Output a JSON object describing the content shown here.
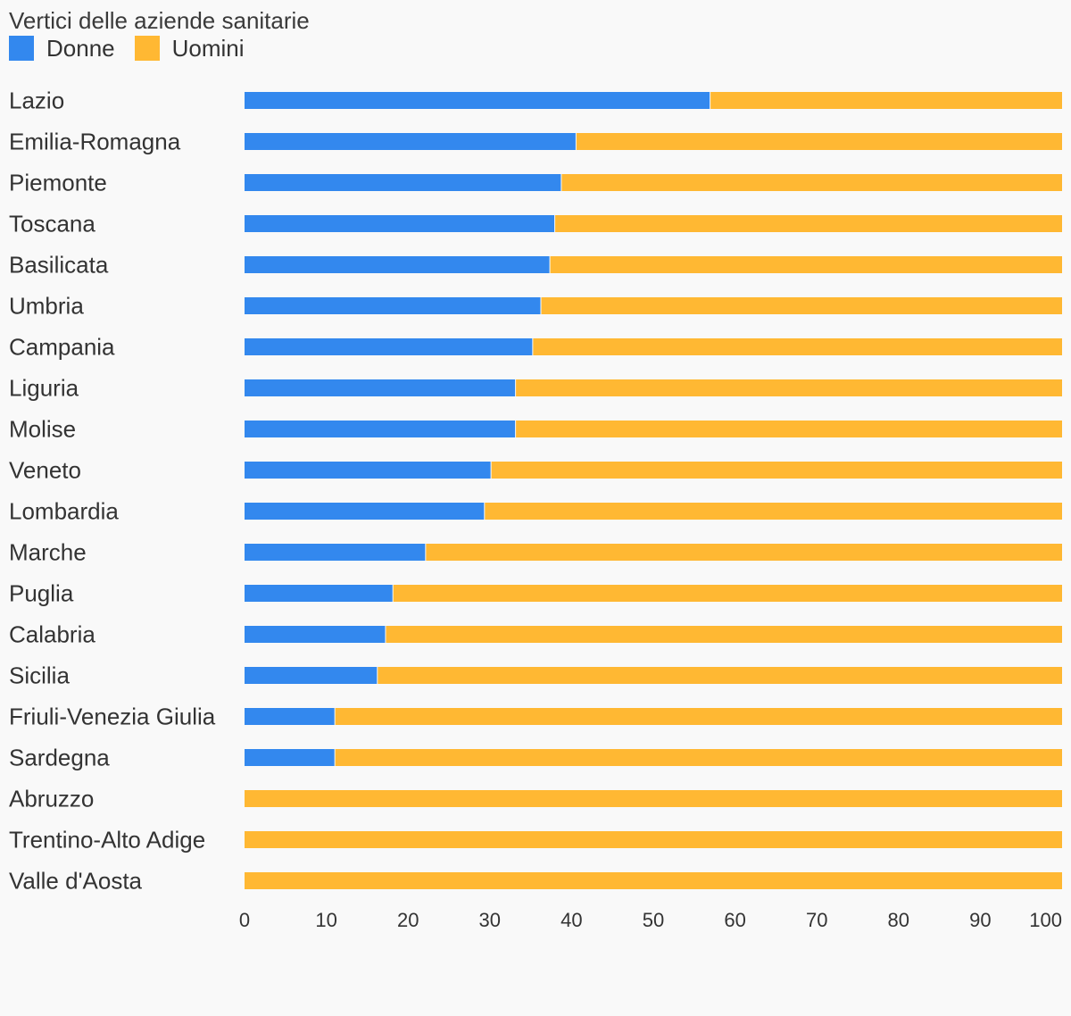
{
  "colors": {
    "background": "#f9f9f9",
    "donne": "#3388ee",
    "uomini": "#ffb833"
  },
  "chart_data": {
    "type": "bar",
    "orientation": "horizontal",
    "stacked": true,
    "title": "Vertici delle aziende sanitarie",
    "legend_position": "top-left",
    "categories": [
      "Lazio",
      "Emilia-Romagna",
      "Piemonte",
      "Toscana",
      "Basilicata",
      "Umbria",
      "Campania",
      "Liguria",
      "Molise",
      "Veneto",
      "Lombardia",
      "Marche",
      "Puglia",
      "Calabria",
      "Sicilia",
      "Friuli-Venezia Giulia",
      "Sardegna",
      "Abruzzo",
      "Trentino-Alto Adige",
      "Valle d'Aosta"
    ],
    "series": [
      {
        "name": "Donne",
        "color": "#3388ee",
        "values": [
          57,
          40.6,
          38.8,
          38,
          37.4,
          36.3,
          35.3,
          33.2,
          33.2,
          30.2,
          29.4,
          22.2,
          18.2,
          17.3,
          16.3,
          11.1,
          11.1,
          0,
          0,
          0
        ]
      },
      {
        "name": "Uomini",
        "color": "#ffb833",
        "values": [
          43,
          59.4,
          61.2,
          62,
          62.6,
          63.7,
          64.7,
          66.8,
          66.8,
          69.8,
          70.6,
          77.8,
          81.8,
          82.7,
          83.7,
          88.9,
          88.9,
          100,
          100,
          100
        ]
      }
    ],
    "xlim": [
      0,
      100
    ],
    "xticks": [
      0,
      10,
      20,
      30,
      40,
      50,
      60,
      70,
      80,
      90,
      100
    ],
    "grid": false
  }
}
